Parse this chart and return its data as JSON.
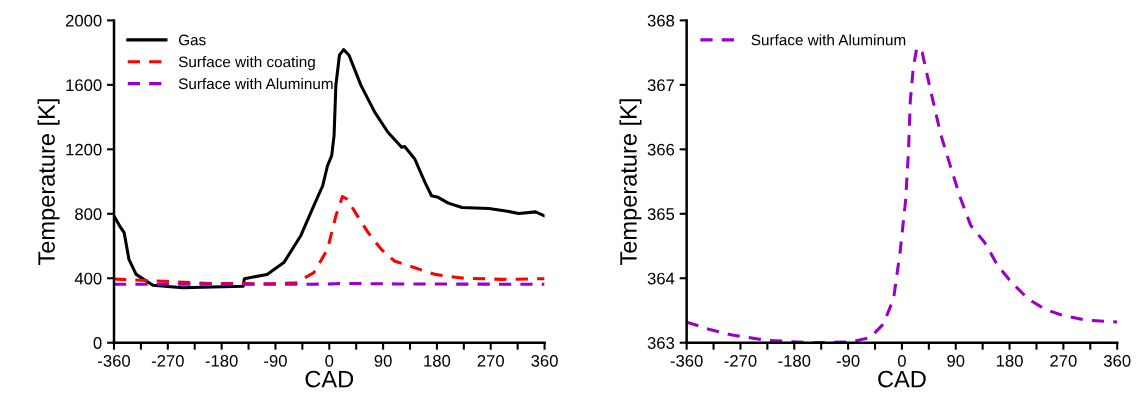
{
  "chart_data": [
    {
      "type": "line",
      "xlabel": "CAD",
      "ylabel": "Temperature [K]",
      "xlim": [
        -360,
        360
      ],
      "ylim": [
        0,
        2000
      ],
      "xticks": [
        -360,
        {
          "value": -315,
          "label": null
        },
        -270,
        {
          "value": -225,
          "label": null
        },
        -180,
        {
          "value": -135,
          "label": null
        },
        -90,
        {
          "value": -45,
          "label": null
        },
        0,
        {
          "value": 45,
          "label": null
        },
        90,
        {
          "value": 135,
          "label": null
        },
        180,
        {
          "value": 225,
          "label": null
        },
        270,
        {
          "value": 315,
          "label": null
        },
        360
      ],
      "yticks": [
        0,
        400,
        800,
        1200,
        1600,
        2000
      ],
      "grid": false,
      "legend": "top left",
      "series": [
        {
          "name": "Gas",
          "color": "#000000",
          "line_style": "solid",
          "x": [
            -360,
            -349,
            -343,
            -335,
            -323,
            -295,
            -245,
            -144,
            -142,
            -104,
            -76,
            -48,
            -26,
            -11,
            -3,
            4,
            8,
            11,
            17,
            24,
            33,
            53,
            76,
            98,
            121,
            126,
            143,
            160,
            171,
            182,
            199,
            222,
            267,
            295,
            317,
            345,
            360
          ],
          "values": [
            787,
            715,
            683,
            517,
            424,
            357,
            341,
            351,
            397,
            424,
            497,
            662,
            849,
            974,
            1098,
            1161,
            1285,
            1597,
            1784,
            1819,
            1784,
            1597,
            1431,
            1306,
            1213,
            1217,
            1140,
            995,
            912,
            902,
            866,
            839,
            833,
            818,
            802,
            812,
            787
          ]
        },
        {
          "name": "Surface with coating",
          "color": "#ff0000",
          "line_style": "dashed",
          "x": [
            -360,
            -300,
            -200,
            -100,
            -56,
            -26,
            -3,
            11,
            22,
            30,
            47,
            65,
            87,
            109,
            143,
            177,
            222,
            290,
            352,
            360
          ],
          "values": [
            395,
            385,
            368,
            366,
            372,
            434,
            579,
            787,
            907,
            890,
            787,
            683,
            579,
            507,
            465,
            424,
            401,
            393,
            397,
            397
          ]
        },
        {
          "name": "Surface with Aluminum",
          "color": "#9900cc",
          "line_style": "dashed",
          "x": [
            -360,
            -323,
            -284,
            -228,
            -155,
            -87,
            -53,
            -31,
            -14,
            -3,
            6,
            11,
            14,
            19,
            25,
            34,
            48,
            65,
            82,
            98,
            115,
            138,
            160,
            183,
            211,
            239,
            267,
            307,
            360
          ],
          "values": [
            363.32,
            363.21,
            363.12,
            363.04,
            363.0,
            363.01,
            363.08,
            363.29,
            363.68,
            364.41,
            365.19,
            365.97,
            366.75,
            367.27,
            367.58,
            367.5,
            366.91,
            366.23,
            365.71,
            365.24,
            364.82,
            364.56,
            364.2,
            363.94,
            363.68,
            363.52,
            363.43,
            363.35,
            363.32
          ]
        }
      ]
    },
    {
      "type": "line",
      "xlabel": "CAD",
      "ylabel": "Temperature [K]",
      "xlim": [
        -360,
        360
      ],
      "ylim": [
        363,
        368
      ],
      "xticks": [
        -360,
        {
          "value": -315,
          "label": null
        },
        -270,
        {
          "value": -225,
          "label": null
        },
        -180,
        {
          "value": -135,
          "label": null
        },
        -90,
        {
          "value": -45,
          "label": null
        },
        0,
        {
          "value": 45,
          "label": null
        },
        90,
        {
          "value": 135,
          "label": null
        },
        180,
        {
          "value": 225,
          "label": null
        },
        270,
        {
          "value": 315,
          "label": null
        },
        360
      ],
      "yticks": [
        363,
        364,
        365,
        366,
        367,
        368
      ],
      "grid": false,
      "legend": "top left",
      "series": [
        {
          "name": "Surface with Aluminum",
          "color": "#9900cc",
          "line_style": "dashed",
          "x": [
            -360,
            -323,
            -284,
            -228,
            -155,
            -87,
            -53,
            -31,
            -14,
            -3,
            6,
            11,
            14,
            19,
            25,
            34,
            48,
            65,
            82,
            98,
            115,
            138,
            160,
            183,
            211,
            239,
            267,
            307,
            360
          ],
          "values": [
            363.32,
            363.21,
            363.12,
            363.04,
            363.0,
            363.01,
            363.08,
            363.29,
            363.68,
            364.41,
            365.19,
            365.97,
            366.75,
            367.27,
            367.58,
            367.5,
            366.91,
            366.23,
            365.71,
            365.24,
            364.82,
            364.56,
            364.2,
            363.94,
            363.68,
            363.52,
            363.43,
            363.35,
            363.32
          ]
        }
      ]
    }
  ]
}
